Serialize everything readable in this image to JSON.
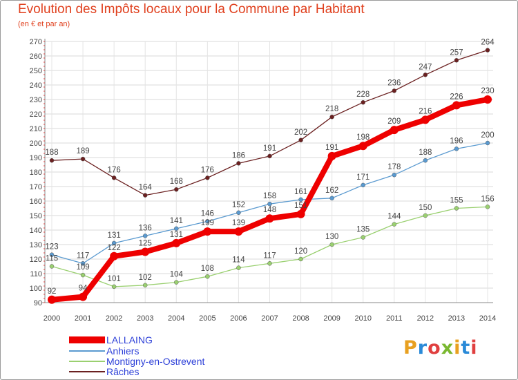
{
  "title": "Evolution des Impôts locaux pour la Commune par Habitant",
  "subtitle": "(en € et par an)",
  "logo": {
    "text": "Proxiti",
    "letters": [
      "P",
      "r",
      "o",
      "x",
      "i",
      "t",
      "i"
    ],
    "colors": [
      "#e8a020",
      "#2a8ad8",
      "#e04040",
      "#7ab830",
      "#e8a020",
      "#2a8ad8",
      "#e04040"
    ]
  },
  "chart_data": {
    "type": "line",
    "x": [
      2000,
      2001,
      2002,
      2003,
      2004,
      2005,
      2006,
      2007,
      2008,
      2009,
      2010,
      2011,
      2012,
      2013,
      2014
    ],
    "ylim": [
      90,
      270
    ],
    "yticks": [
      90,
      100,
      110,
      120,
      130,
      140,
      150,
      160,
      170,
      180,
      190,
      200,
      210,
      220,
      230,
      240,
      250,
      260,
      270
    ],
    "grid": true,
    "legend_position": "bottom-left",
    "series": [
      {
        "name": "Râches",
        "color": "#6b2020",
        "values": [
          188,
          189,
          176,
          164,
          168,
          176,
          186,
          191,
          202,
          218,
          228,
          236,
          247,
          257,
          264
        ]
      },
      {
        "name": "Anhiers",
        "color": "#5a9ad0",
        "values": [
          123,
          117,
          131,
          136,
          141,
          146,
          152,
          158,
          161,
          162,
          171,
          178,
          188,
          196,
          200
        ]
      },
      {
        "name": "Montigny-en-Ostrevent",
        "color": "#9ad070",
        "values": [
          115,
          109,
          101,
          102,
          104,
          108,
          114,
          117,
          120,
          130,
          135,
          144,
          150,
          155,
          156
        ]
      },
      {
        "name": "LALLAING",
        "color": "#ee0000",
        "values": [
          92,
          94,
          122,
          125,
          131,
          139,
          139,
          148,
          151,
          191,
          198,
          209,
          216,
          226,
          230
        ]
      }
    ],
    "legend_order": [
      "LALLAING",
      "Anhiers",
      "Montigny-en-Ostrevent",
      "Râches"
    ]
  }
}
